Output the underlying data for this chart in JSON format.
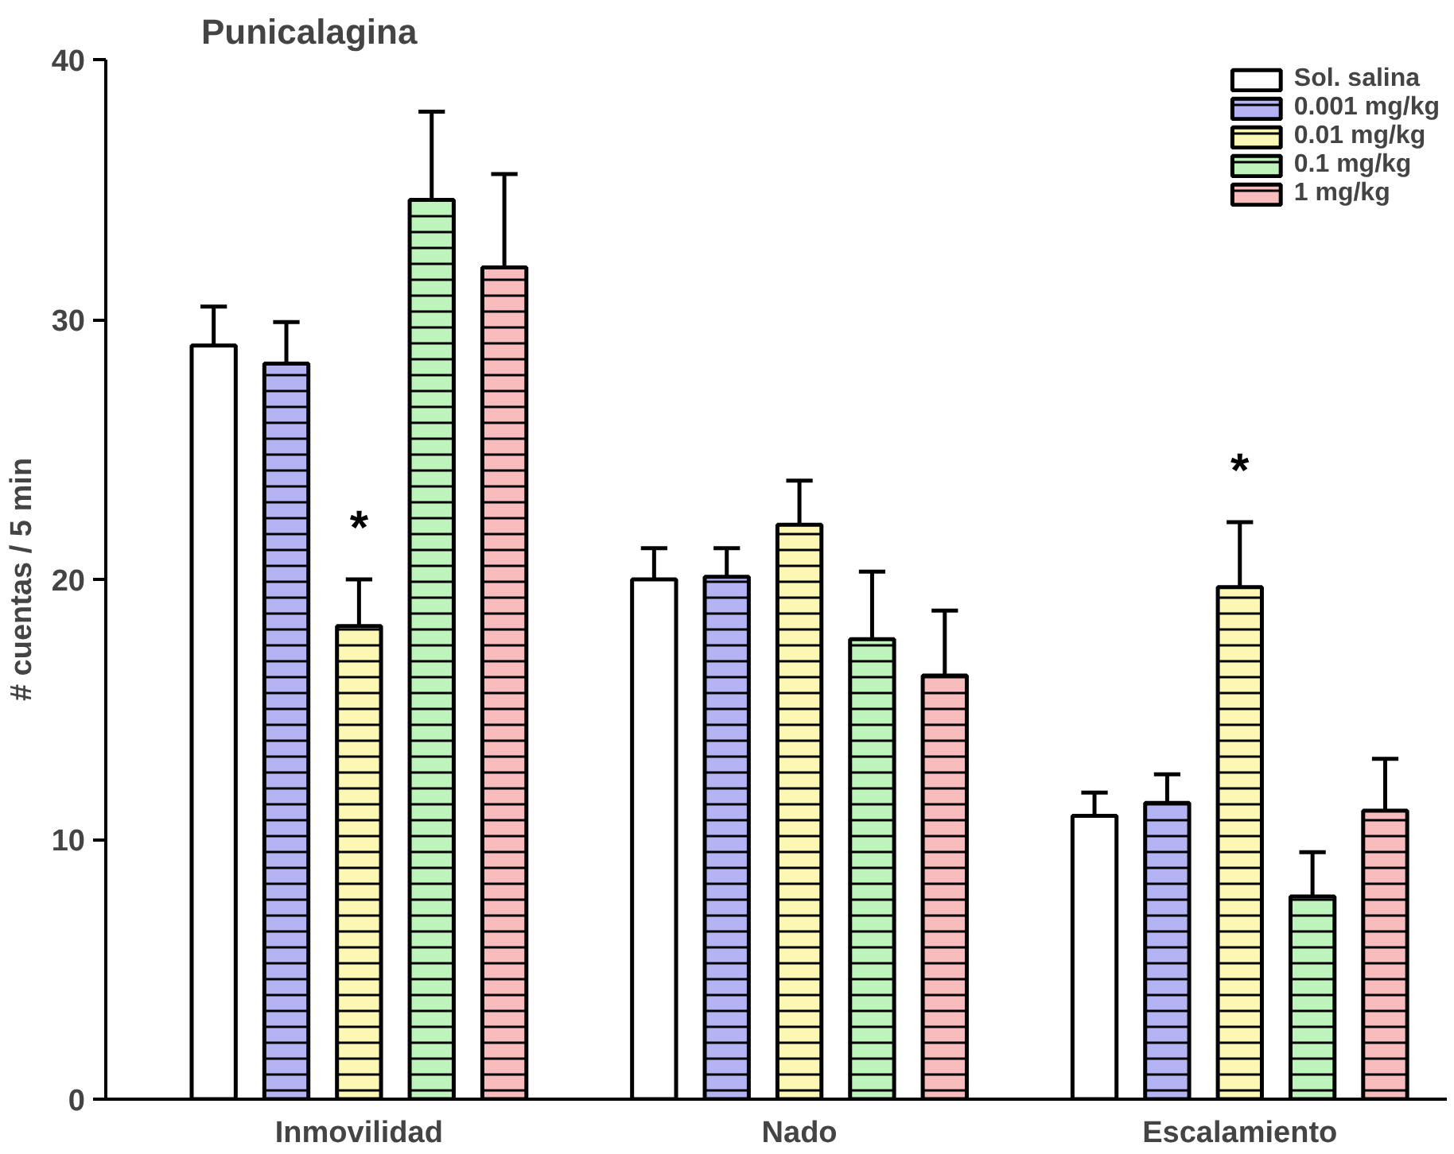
{
  "chart_data": {
    "type": "bar",
    "title": "Punicalagina",
    "ylabel": "# cuentas / 5 min",
    "categories": [
      "Inmovilidad",
      "Nado",
      "Escalamiento"
    ],
    "series": [
      {
        "name": "Sol. salina",
        "color": "#ffffff",
        "values": [
          29.0,
          20.0,
          10.9
        ],
        "errors": [
          1.5,
          1.2,
          0.9
        ]
      },
      {
        "name": "0.001 mg/kg",
        "color": "#b4b4f4",
        "values": [
          28.3,
          20.1,
          11.4
        ],
        "errors": [
          1.6,
          1.1,
          1.1
        ]
      },
      {
        "name": "0.01 mg/kg",
        "color": "#fcf8b4",
        "values": [
          18.2,
          22.1,
          19.7
        ],
        "errors": [
          1.8,
          1.7,
          2.5
        ]
      },
      {
        "name": "0.1 mg/kg",
        "color": "#bcf4bc",
        "values": [
          34.6,
          17.7,
          7.8
        ],
        "errors": [
          3.4,
          2.6,
          1.7
        ]
      },
      {
        "name": "1 mg/kg",
        "color": "#f8bcbc",
        "values": [
          32.0,
          16.3,
          11.1
        ],
        "errors": [
          3.6,
          2.5,
          2.0
        ]
      }
    ],
    "annotations": [
      "*",
      "*"
    ],
    "ylim": [
      0,
      40
    ],
    "yticks": [
      0,
      10,
      20,
      30,
      40
    ],
    "grid": false,
    "legend": "top right"
  }
}
